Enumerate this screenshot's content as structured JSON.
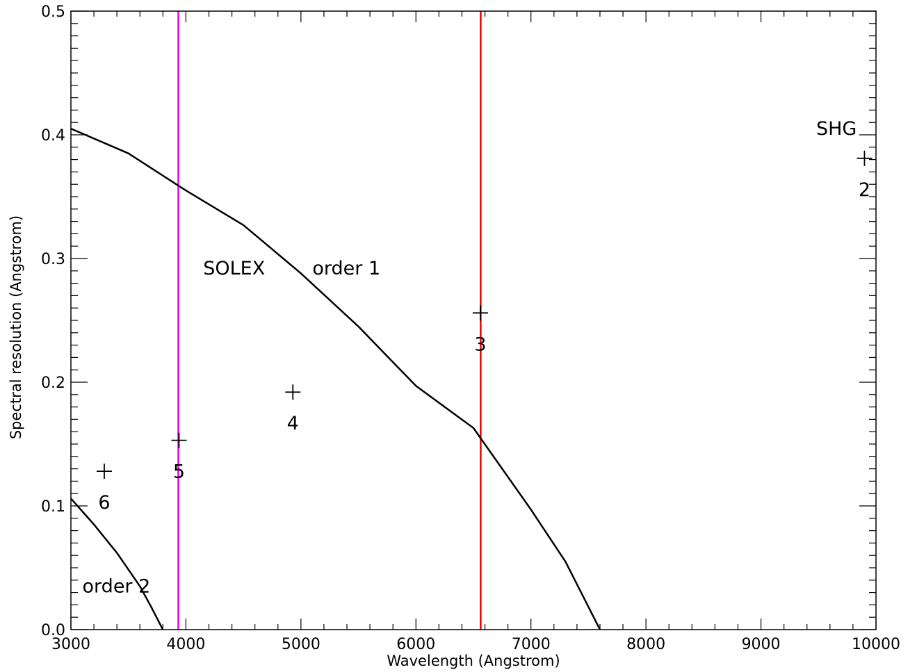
{
  "chart_data": {
    "type": "line",
    "xlabel": "Wavelength (Angstrom)",
    "ylabel": "Spectral resolution (Angstrom)",
    "xlim": [
      3000,
      10000
    ],
    "ylim": [
      0,
      0.5
    ],
    "x_ticks": [
      3000,
      4000,
      5000,
      6000,
      7000,
      8000,
      9000,
      10000
    ],
    "y_ticks": [
      0.0,
      0.1,
      0.2,
      0.3,
      0.4,
      0.5
    ],
    "x_tick_labels": [
      "3000",
      "4000",
      "5000",
      "6000",
      "7000",
      "8000",
      "9000",
      "10000"
    ],
    "y_tick_labels": [
      "0.0",
      "0.1",
      "0.2",
      "0.3",
      "0.4",
      "0.5"
    ],
    "grid": false,
    "curves": [
      {
        "name": "order 1",
        "x": [
          3000,
          3500,
          4000,
          4500,
          5000,
          5500,
          6000,
          6500,
          7000,
          7300,
          7600
        ],
        "y": [
          0.405,
          0.385,
          0.355,
          0.327,
          0.288,
          0.245,
          0.197,
          0.163,
          0.097,
          0.055,
          0.0
        ]
      },
      {
        "name": "order 2",
        "x": [
          3000,
          3200,
          3400,
          3600,
          3700,
          3800
        ],
        "y": [
          0.106,
          0.085,
          0.062,
          0.035,
          0.018,
          0.0
        ]
      }
    ],
    "vertical_lines": [
      {
        "x": 3934,
        "color": "#e600e6"
      },
      {
        "x": 6563,
        "color": "#e60000"
      }
    ],
    "points": [
      {
        "x": 9900,
        "y": 0.381,
        "label": "2"
      },
      {
        "x": 6560,
        "y": 0.256,
        "label": "3"
      },
      {
        "x": 4930,
        "y": 0.192,
        "label": "4"
      },
      {
        "x": 3940,
        "y": 0.153,
        "label": "5"
      },
      {
        "x": 3290,
        "y": 0.128,
        "label": "6"
      }
    ],
    "annotations": [
      {
        "text": "SOLEX",
        "x": 4150,
        "y": 0.287
      },
      {
        "text": "order 1",
        "x": 5100,
        "y": 0.287
      },
      {
        "text": "order 2",
        "x": 3100,
        "y": 0.03
      },
      {
        "text": "SHG",
        "x": 9480,
        "y": 0.4
      }
    ]
  }
}
